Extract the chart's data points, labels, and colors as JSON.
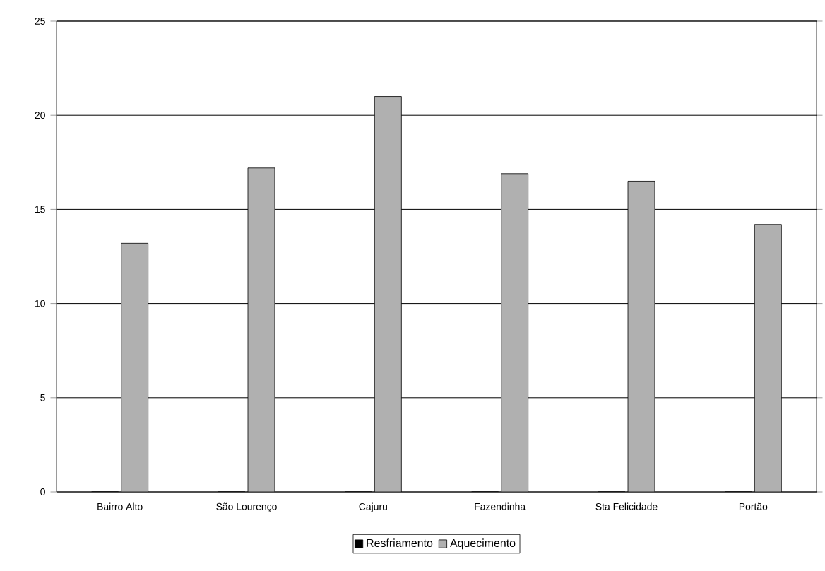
{
  "chart_data": {
    "type": "bar",
    "categories": [
      "Bairro Alto",
      "São Lourenço",
      "Cajuru",
      "Fazendinha",
      "Sta Felicidade",
      "Portão"
    ],
    "series": [
      {
        "name": "Resfriamento",
        "color": "#000000",
        "values": [
          0,
          0,
          0,
          0,
          0,
          0
        ]
      },
      {
        "name": "Aquecimento",
        "color": "#b0b0b0",
        "values": [
          13.2,
          17.2,
          21.0,
          16.9,
          16.5,
          14.2
        ]
      }
    ],
    "ylim": [
      0,
      25
    ],
    "yticks": [
      0,
      5,
      10,
      15,
      20,
      25
    ],
    "grid": "y",
    "legend": "bottom"
  }
}
